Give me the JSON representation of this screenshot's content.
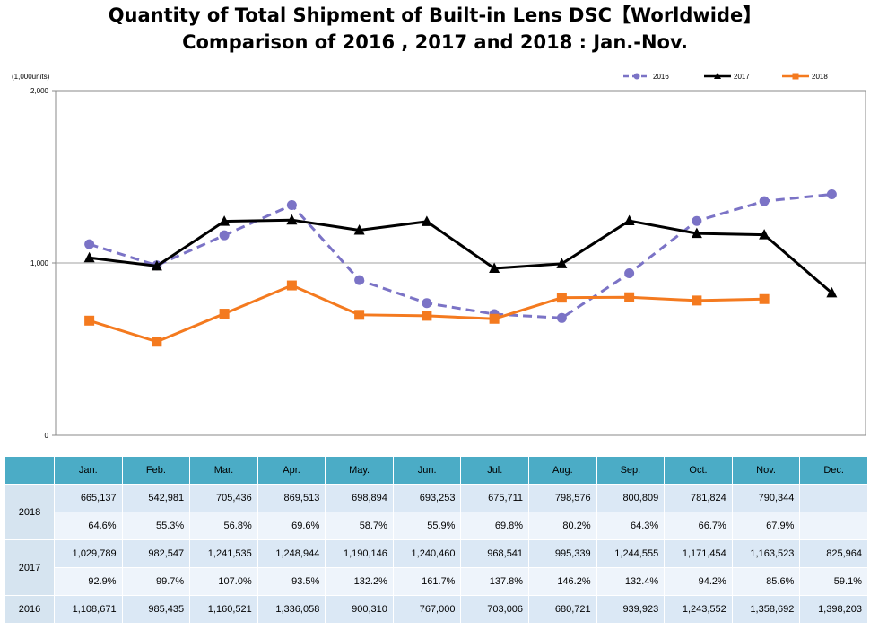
{
  "title_line1": "Quantity of Total Shipment of Built-in Lens DSC【Worldwide】",
  "title_line2": "Comparison of 2016 , 2017 and 2018 : Jan.-Nov.",
  "chart_data": {
    "type": "line",
    "y_unit": "(1,000units)",
    "ylim": [
      0,
      2000
    ],
    "yticks": [
      "0",
      "1,000",
      "2,000"
    ],
    "grid": "horizontal line at 1,000",
    "legend_position": "top-right",
    "categories": [
      "Jan.",
      "Feb.",
      "Mar.",
      "Apr.",
      "May.",
      "Jun.",
      "Jul.",
      "Aug.",
      "Sep.",
      "Oct.",
      "Nov.",
      "Dec."
    ],
    "series": [
      {
        "name": "2016",
        "color": "#7b73c6",
        "style": "dashed",
        "marker": "circle",
        "values": [
          1108.671,
          985.435,
          1160.521,
          1336.058,
          900.31,
          767.0,
          703.006,
          680.721,
          939.923,
          1243.552,
          1358.692,
          1398.203
        ]
      },
      {
        "name": "2017",
        "color": "#000000",
        "style": "solid",
        "marker": "triangle",
        "values": [
          1029.789,
          982.547,
          1241.535,
          1248.944,
          1190.146,
          1240.46,
          968.541,
          995.339,
          1244.555,
          1171.454,
          1163.523,
          825.964
        ]
      },
      {
        "name": "2018",
        "color": "#f47a1f",
        "style": "solid",
        "marker": "square",
        "values": [
          665.137,
          542.981,
          705.436,
          869.513,
          698.894,
          693.253,
          675.711,
          798.576,
          800.809,
          781.824,
          790.344,
          null
        ]
      }
    ]
  },
  "table": {
    "months": [
      "Jan.",
      "Feb.",
      "Mar.",
      "Apr.",
      "May.",
      "Jun.",
      "Jul.",
      "Aug.",
      "Sep.",
      "Oct.",
      "Nov.",
      "Dec."
    ],
    "rows": [
      {
        "year": "2018",
        "values": [
          "665,137",
          "542,981",
          "705,436",
          "869,513",
          "698,894",
          "693,253",
          "675,711",
          "798,576",
          "800,809",
          "781,824",
          "790,344",
          ""
        ],
        "percents": [
          "64.6%",
          "55.3%",
          "56.8%",
          "69.6%",
          "58.7%",
          "55.9%",
          "69.8%",
          "80.2%",
          "64.3%",
          "66.7%",
          "67.9%",
          ""
        ]
      },
      {
        "year": "2017",
        "values": [
          "1,029,789",
          "982,547",
          "1,241,535",
          "1,248,944",
          "1,190,146",
          "1,240,460",
          "968,541",
          "995,339",
          "1,244,555",
          "1,171,454",
          "1,163,523",
          "825,964"
        ],
        "percents": [
          "92.9%",
          "99.7%",
          "107.0%",
          "93.5%",
          "132.2%",
          "161.7%",
          "137.8%",
          "146.2%",
          "132.4%",
          "94.2%",
          "85.6%",
          "59.1%"
        ]
      },
      {
        "year": "2016",
        "values": [
          "1,108,671",
          "985,435",
          "1,160,521",
          "1,336,058",
          "900,310",
          "767,000",
          "703,006",
          "680,721",
          "939,923",
          "1,243,552",
          "1,358,692",
          "1,398,203"
        ]
      }
    ]
  }
}
